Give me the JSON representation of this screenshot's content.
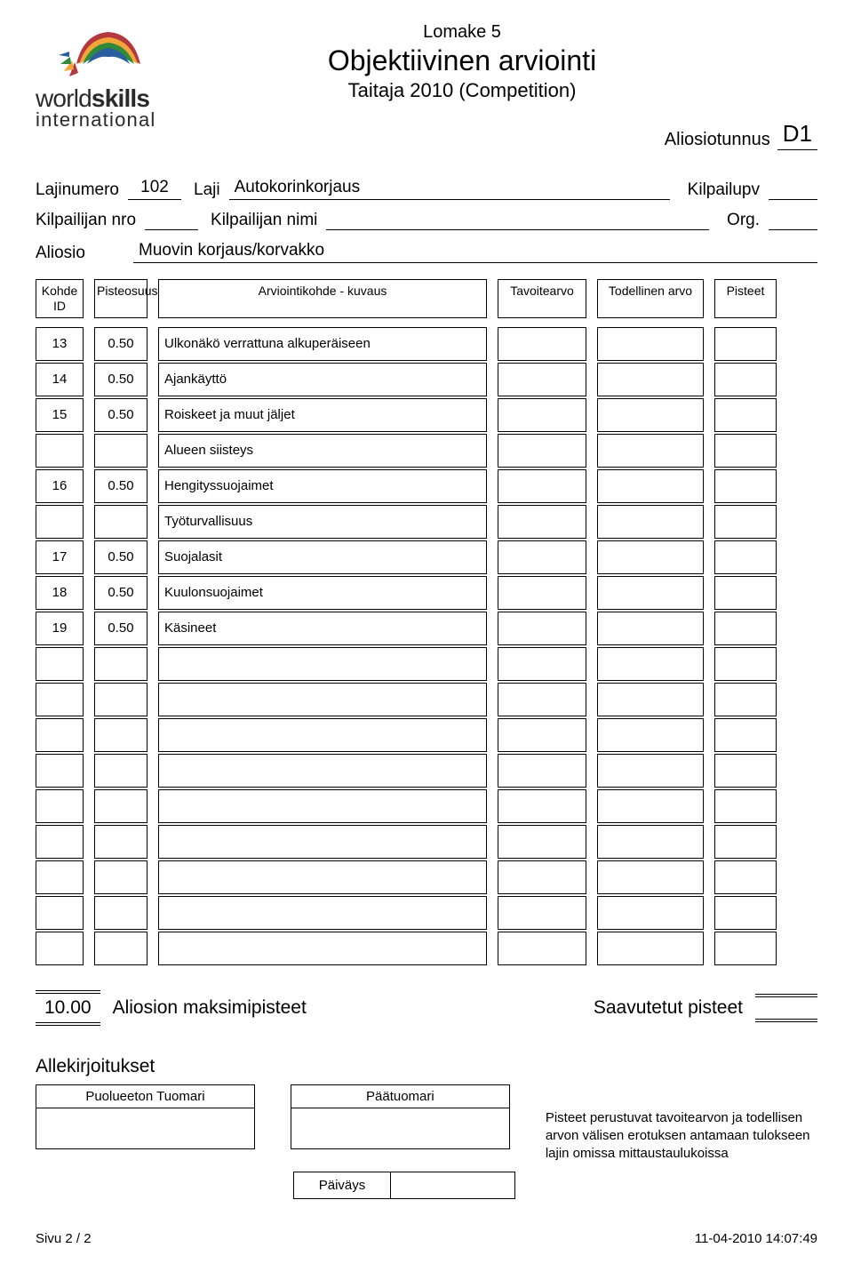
{
  "header": {
    "form_number": "Lomake 5",
    "title": "Objektiivinen arviointi",
    "subtitle": "Taitaja 2010 (Competition)",
    "aliosio_label": "Aliosiotunnus",
    "aliosio_code": "D1"
  },
  "logo": {
    "line1": "worldskills",
    "line2": "international"
  },
  "info": {
    "lajinumero_label": "Lajinumero",
    "lajinumero_value": "102",
    "laji_label": "Laji",
    "laji_value": "Autokorinkorjaus",
    "kilpailupv_label": "Kilpailupv",
    "kilpailijan_nro_label": "Kilpailijan nro",
    "kilpailijan_nimi_label": "Kilpailijan nimi",
    "org_label": "Org.",
    "aliosio_label": "Aliosio",
    "aliosio_value": "Muovin korjaus/korvakko"
  },
  "table": {
    "head": {
      "id": "Kohde ID",
      "score": "Pisteosuus",
      "desc": "Arviointikohde - kuvaus",
      "target": "Tavoitearvo",
      "actual": "Todellinen arvo",
      "points": "Pisteet"
    },
    "rows": [
      {
        "id": "13",
        "score": "0.50",
        "desc": "Ulkonäkö verrattuna alkuperäiseen"
      },
      {
        "id": "14",
        "score": "0.50",
        "desc": "Ajankäyttö"
      },
      {
        "id": "15",
        "score": "0.50",
        "desc": "Roiskeet ja muut jäljet"
      },
      {
        "id": "",
        "score": "",
        "desc": "Alueen siisteys"
      },
      {
        "id": "16",
        "score": "0.50",
        "desc": "Hengityssuojaimet"
      },
      {
        "id": "",
        "score": "",
        "desc": "Työturvallisuus"
      },
      {
        "id": "17",
        "score": "0.50",
        "desc": "Suojalasit"
      },
      {
        "id": "18",
        "score": "0.50",
        "desc": "Kuulonsuojaimet"
      },
      {
        "id": "19",
        "score": "0.50",
        "desc": "Käsineet"
      }
    ],
    "empty_row_count": 9
  },
  "totals": {
    "max_value": "10.00",
    "max_label": "Aliosion maksimipisteet",
    "reached_label": "Saavutetut pisteet"
  },
  "signatures": {
    "heading": "Allekirjoitukset",
    "box1": "Puolueeton Tuomari",
    "box2": "Päätuomari",
    "note": "Pisteet perustuvat tavoitearvon ja todellisen arvon välisen erotuksen antamaan tulokseen lajin omissa mittaustaulukoissa",
    "date_label": "Päiväys"
  },
  "footer": {
    "left": "Sivu 2 / 2",
    "right": "11-04-2010  14:07:49"
  },
  "colors": {
    "text": "#000000",
    "background": "#ffffff",
    "logo_text": "#2a2a2a"
  }
}
